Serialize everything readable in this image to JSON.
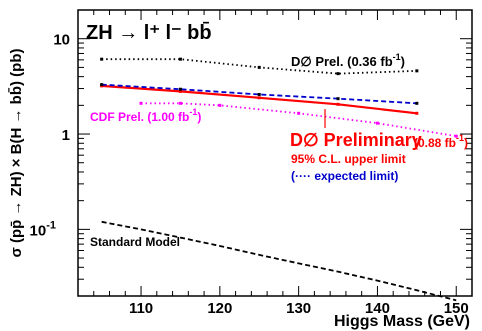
{
  "chart_data": {
    "type": "line",
    "title": "ZH → l⁺ l⁻ bb̄",
    "xlabel": "Higgs Mass (GeV)",
    "ylabel": "σ (pp̄ → ZH) × B(H → bb̄) (pb)",
    "xlim": [
      102,
      152
    ],
    "ylim": [
      0.02,
      20
    ],
    "yscale": "log",
    "grid": false,
    "xticks": [
      "110",
      "120",
      "130",
      "140",
      "150"
    ],
    "yticks": [
      {
        "value": 10,
        "label": "10"
      },
      {
        "value": 1,
        "label": "1"
      },
      {
        "value": 0.1,
        "label": "10",
        "exp": "-1"
      }
    ],
    "series": [
      {
        "name": "D∅ Prel. (0.36 fb⁻¹)",
        "color": "#000000",
        "style": "dotted",
        "x": [
          105,
          115,
          125,
          135,
          145
        ],
        "y": [
          6.1,
          6.1,
          5.0,
          4.3,
          4.6
        ]
      },
      {
        "name": "D∅ Preliminary (0.88 fb⁻¹)",
        "color": "#ff0000",
        "style": "solid",
        "x": [
          105,
          115,
          125,
          135,
          145
        ],
        "y": [
          3.2,
          2.8,
          2.4,
          2.05,
          1.65
        ]
      },
      {
        "name": "expected limit",
        "color": "#0000cc",
        "style": "dashed",
        "x": [
          105,
          115,
          125,
          135,
          145
        ],
        "y": [
          3.3,
          2.95,
          2.6,
          2.35,
          2.1
        ]
      },
      {
        "name": "CDF Prel. (1.00 fb⁻¹)",
        "color": "#ff00ff",
        "style": "dotted",
        "x": [
          110,
          115,
          120,
          130,
          140,
          150
        ],
        "y": [
          2.1,
          2.1,
          2.0,
          1.65,
          1.3,
          0.95
        ]
      },
      {
        "name": "Standard Model",
        "color": "#000000",
        "style": "dashed",
        "x": [
          105,
          110,
          115,
          120,
          125,
          130,
          135,
          140,
          145,
          150
        ],
        "y": [
          0.12,
          0.1,
          0.082,
          0.067,
          0.054,
          0.044,
          0.036,
          0.029,
          0.023,
          0.018
        ]
      }
    ],
    "annotations": {
      "d0_old": {
        "main": "D∅ Prel. (0.36 fb",
        "exp": "-1",
        "close": ")"
      },
      "cdf": {
        "main": "CDF Prel. (1.00 fb",
        "exp": "-1",
        "close": ")"
      },
      "d0_new": "D∅ Preliminary",
      "d0_new_lumi": {
        "main": "(0.88 fb",
        "exp": "-1",
        "close": ")"
      },
      "cl_line": "95% C.L. upper limit",
      "expected_line": "(···· expected limit)",
      "sm_label": "Standard Model"
    }
  }
}
